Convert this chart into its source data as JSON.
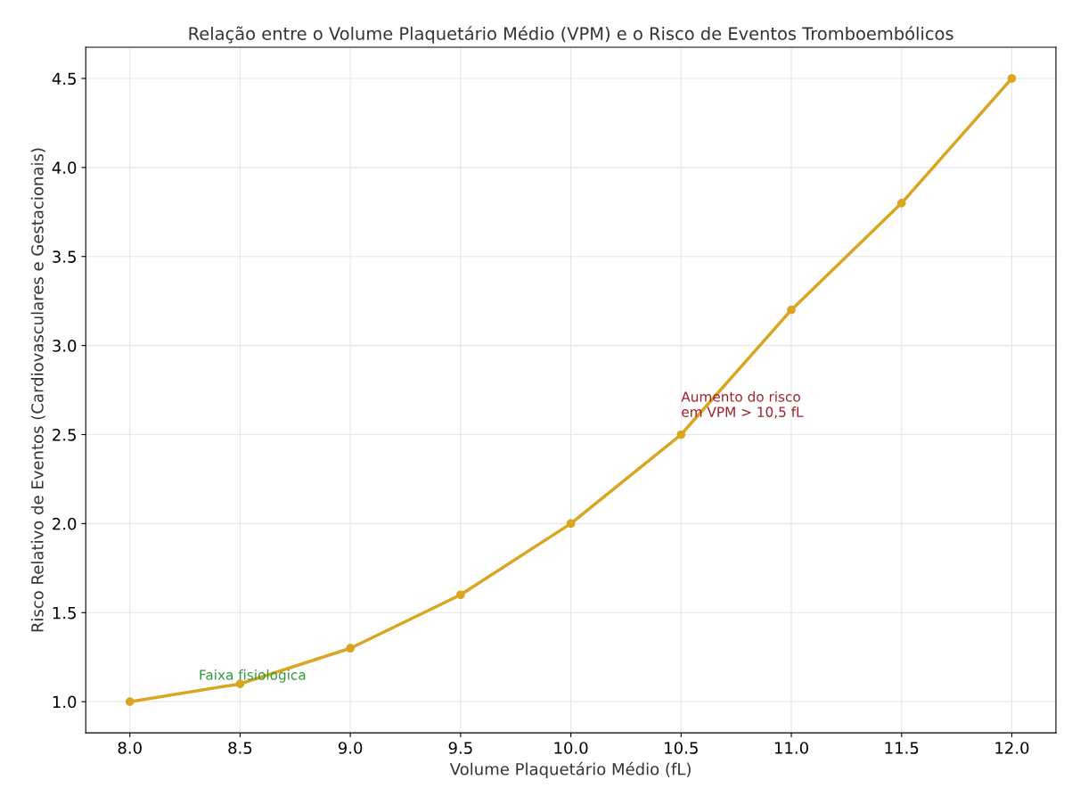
{
  "chart_data": {
    "type": "line",
    "title": "Relação entre o Volume Plaquetário Médio (VPM) e o Risco de Eventos Tromboembólicos",
    "xlabel": "Volume Plaquetário Médio (fL)",
    "ylabel": "Risco Relativo de Eventos (Cardiovasculares e Gestacionais)",
    "x": [
      8.0,
      8.5,
      9.0,
      9.5,
      10.0,
      10.5,
      11.0,
      11.5,
      12.0
    ],
    "series": [
      {
        "color": "#daa520",
        "values": [
          1.0,
          1.1,
          1.3,
          1.6,
          2.0,
          2.5,
          3.2,
          3.8,
          4.5
        ]
      }
    ],
    "marker": "circle",
    "line_style": "solid",
    "grid": true,
    "xlim": [
      7.8,
      12.2
    ],
    "ylim": [
      0.825,
      4.675
    ],
    "xticks": [
      {
        "value": 8.0,
        "label": "8.0"
      },
      {
        "value": 8.5,
        "label": "8.5"
      },
      {
        "value": 9.0,
        "label": "9.0"
      },
      {
        "value": 9.5,
        "label": "9.5"
      },
      {
        "value": 10.0,
        "label": "10.0"
      },
      {
        "value": 10.5,
        "label": "10.5"
      },
      {
        "value": 11.0,
        "label": "11.0"
      },
      {
        "value": 11.5,
        "label": "11.5"
      },
      {
        "value": 12.0,
        "label": "12.0"
      }
    ],
    "yticks": [
      {
        "value": 1.0,
        "label": "1.0"
      },
      {
        "value": 1.5,
        "label": "1.5"
      },
      {
        "value": 2.0,
        "label": "2.0"
      },
      {
        "value": 2.5,
        "label": "2.5"
      },
      {
        "value": 3.0,
        "label": "3.0"
      },
      {
        "value": 3.5,
        "label": "3.5"
      },
      {
        "value": 4.0,
        "label": "4.0"
      },
      {
        "value": 4.5,
        "label": "4.5"
      }
    ],
    "annotations": [
      {
        "text": "Faixa fisiologica",
        "x": 8.5,
        "y": 1.1
      },
      {
        "text": "Aumento do risco\nem VPM > 10,5 fL",
        "x": 10.5,
        "y": 2.5
      }
    ]
  }
}
